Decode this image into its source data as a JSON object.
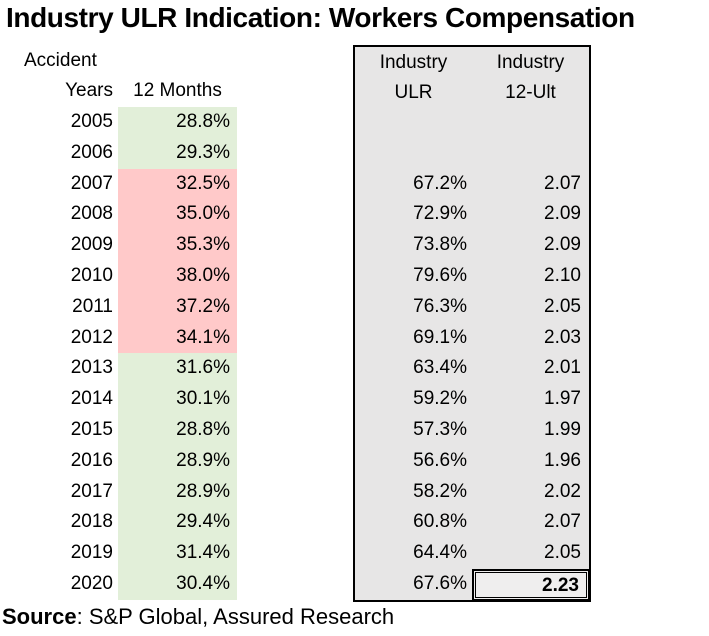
{
  "title": "Industry ULR Indication: Workers Compensation",
  "headers": {
    "accident": "Accident",
    "years": "Years",
    "twelve_months": "12 Months",
    "industry_ulr_line1": "Industry",
    "industry_ulr_line2": "ULR",
    "industry_12ult_line1": "Industry",
    "industry_12ult_line2": "12-Ult"
  },
  "source": {
    "label": "Source",
    "text": ": S&P Global, Assured Research"
  },
  "colors": {
    "green_fill": "#e2efd9",
    "red_fill": "#ffc9c9",
    "box_fill": "#e7e6e6",
    "border": "#000000"
  },
  "chart_data": {
    "type": "table",
    "title": "Industry ULR Indication: Workers Compensation",
    "columns": [
      "Accident Years",
      "12 Months",
      "Industry ULR",
      "Industry 12-Ult"
    ],
    "legend_note": "12 Months column cells are shaded green (lower ULR) or red (higher ULR); Industry ULR and 12-Ult sit inside a gray bordered panel; final 12-Ult value is boxed and bold",
    "rows": [
      {
        "year": "2005",
        "twelve_months": "28.8%",
        "fill": "green",
        "industry_ulr": "",
        "industry_12_ult": "",
        "highlight": false
      },
      {
        "year": "2006",
        "twelve_months": "29.3%",
        "fill": "green",
        "industry_ulr": "",
        "industry_12_ult": "",
        "highlight": false
      },
      {
        "year": "2007",
        "twelve_months": "32.5%",
        "fill": "red",
        "industry_ulr": "67.2%",
        "industry_12_ult": "2.07",
        "highlight": false
      },
      {
        "year": "2008",
        "twelve_months": "35.0%",
        "fill": "red",
        "industry_ulr": "72.9%",
        "industry_12_ult": "2.09",
        "highlight": false
      },
      {
        "year": "2009",
        "twelve_months": "35.3%",
        "fill": "red",
        "industry_ulr": "73.8%",
        "industry_12_ult": "2.09",
        "highlight": false
      },
      {
        "year": "2010",
        "twelve_months": "38.0%",
        "fill": "red",
        "industry_ulr": "79.6%",
        "industry_12_ult": "2.10",
        "highlight": false
      },
      {
        "year": "2011",
        "twelve_months": "37.2%",
        "fill": "red",
        "industry_ulr": "76.3%",
        "industry_12_ult": "2.05",
        "highlight": false
      },
      {
        "year": "2012",
        "twelve_months": "34.1%",
        "fill": "red",
        "industry_ulr": "69.1%",
        "industry_12_ult": "2.03",
        "highlight": false
      },
      {
        "year": "2013",
        "twelve_months": "31.6%",
        "fill": "green",
        "industry_ulr": "63.4%",
        "industry_12_ult": "2.01",
        "highlight": false
      },
      {
        "year": "2014",
        "twelve_months": "30.1%",
        "fill": "green",
        "industry_ulr": "59.2%",
        "industry_12_ult": "1.97",
        "highlight": false
      },
      {
        "year": "2015",
        "twelve_months": "28.8%",
        "fill": "green",
        "industry_ulr": "57.3%",
        "industry_12_ult": "1.99",
        "highlight": false
      },
      {
        "year": "2016",
        "twelve_months": "28.9%",
        "fill": "green",
        "industry_ulr": "56.6%",
        "industry_12_ult": "1.96",
        "highlight": false
      },
      {
        "year": "2017",
        "twelve_months": "28.9%",
        "fill": "green",
        "industry_ulr": "58.2%",
        "industry_12_ult": "2.02",
        "highlight": false
      },
      {
        "year": "2018",
        "twelve_months": "29.4%",
        "fill": "green",
        "industry_ulr": "60.8%",
        "industry_12_ult": "2.07",
        "highlight": false
      },
      {
        "year": "2019",
        "twelve_months": "31.4%",
        "fill": "green",
        "industry_ulr": "64.4%",
        "industry_12_ult": "2.05",
        "highlight": false
      },
      {
        "year": "2020",
        "twelve_months": "30.4%",
        "fill": "green",
        "industry_ulr": "67.6%",
        "industry_12_ult": "2.23",
        "highlight": true
      }
    ]
  }
}
